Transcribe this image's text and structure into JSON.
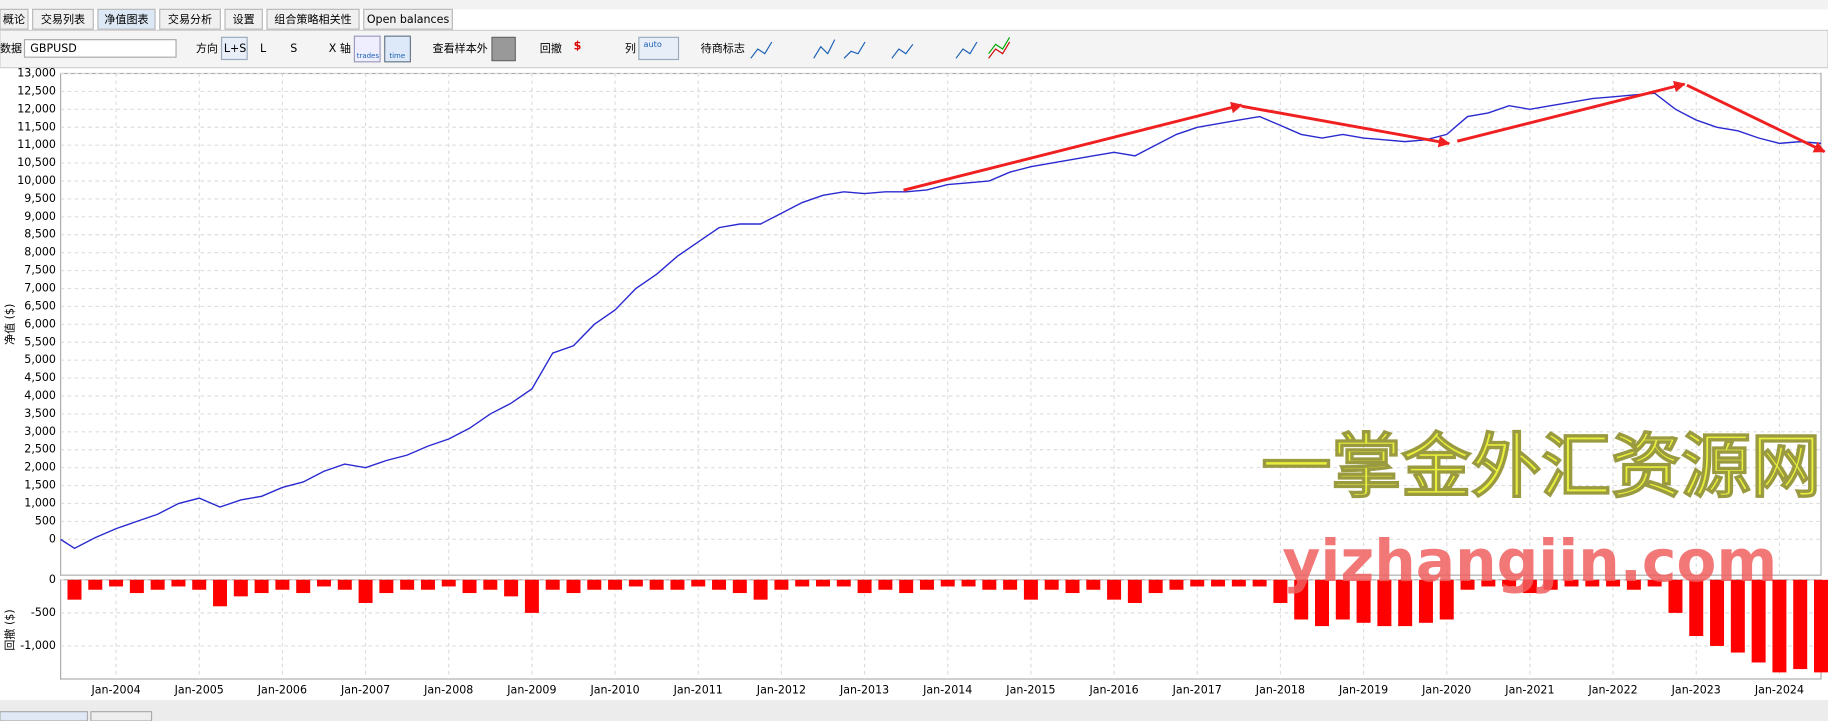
{
  "tabs": [
    "概论",
    "交易列表",
    "净值图表",
    "交易分析",
    "设置",
    "组合策略相关性",
    "Open balances"
  ],
  "toolbar": {
    "data_label": "数据",
    "symbol": "GBPUSD",
    "direction_label": "方向",
    "directions": [
      "L+S",
      "L",
      "S"
    ],
    "x_axis_label": "X 轴",
    "x_axis_modes": [
      "trades",
      "time"
    ],
    "out_of_sample": "查看样本外",
    "drawdown_label": "回撤",
    "drawdown_unit": "$",
    "columns_label": "列",
    "columns_mode": "auto",
    "trade_marks_label": "待商标志"
  },
  "watermark": {
    "title": "一掌金外汇资源网",
    "url": "yizhangjin.com"
  },
  "chart_data": [
    {
      "type": "line",
      "y_label": "净值 ($)",
      "color": "#2a2ad0",
      "grid": true,
      "x": [
        "May-2003",
        "Jul-2003",
        "Oct-2003",
        "Jan-2004",
        "Apr-2004",
        "Jul-2004",
        "Oct-2004",
        "Jan-2005",
        "Apr-2005",
        "Jul-2005",
        "Oct-2005",
        "Jan-2006",
        "Apr-2006",
        "Jul-2006",
        "Oct-2006",
        "Jan-2007",
        "Apr-2007",
        "Jul-2007",
        "Oct-2007",
        "Jan-2008",
        "Apr-2008",
        "Jul-2008",
        "Oct-2008",
        "Jan-2009",
        "Apr-2009",
        "Jul-2009",
        "Oct-2009",
        "Jan-2010",
        "Apr-2010",
        "Jul-2010",
        "Oct-2010",
        "Jan-2011",
        "Apr-2011",
        "Jul-2011",
        "Oct-2011",
        "Jan-2012",
        "Apr-2012",
        "Jul-2012",
        "Oct-2012",
        "Jan-2013",
        "Apr-2013",
        "Jul-2013",
        "Oct-2013",
        "Jan-2014",
        "Apr-2014",
        "Jul-2014",
        "Oct-2014",
        "Jan-2015",
        "Apr-2015",
        "Jul-2015",
        "Oct-2015",
        "Jan-2016",
        "Apr-2016",
        "Jul-2016",
        "Oct-2016",
        "Jan-2017",
        "Apr-2017",
        "Jul-2017",
        "Oct-2017",
        "Jan-2018",
        "Apr-2018",
        "Jul-2018",
        "Oct-2018",
        "Jan-2019",
        "Apr-2019",
        "Jul-2019",
        "Oct-2019",
        "Jan-2020",
        "Apr-2020",
        "Jul-2020",
        "Oct-2020",
        "Jan-2021",
        "Apr-2021",
        "Jul-2021",
        "Oct-2021",
        "Jan-2022",
        "Apr-2022",
        "Jul-2022",
        "Oct-2022",
        "Jan-2023",
        "Apr-2023",
        "Jul-2023",
        "Oct-2023",
        "Jan-2024",
        "Apr-2024",
        "Jul-2024"
      ],
      "values": [
        0,
        -250,
        50,
        300,
        500,
        700,
        1000,
        1150,
        900,
        1100,
        1200,
        1450,
        1600,
        1900,
        2100,
        2000,
        2200,
        2350,
        2600,
        2800,
        3100,
        3500,
        3800,
        4200,
        5200,
        5400,
        6000,
        6400,
        7000,
        7400,
        7900,
        8300,
        8700,
        8800,
        8800,
        9100,
        9400,
        9600,
        9700,
        9650,
        9700,
        9700,
        9750,
        9900,
        9950,
        10000,
        10250,
        10400,
        10500,
        10600,
        10700,
        10800,
        10700,
        11000,
        11300,
        11500,
        11600,
        11700,
        11800,
        11550,
        11300,
        11200,
        11300,
        11200,
        11150,
        11100,
        11150,
        11300,
        11800,
        11900,
        12100,
        12000,
        12100,
        12200,
        12300,
        12350,
        12400,
        12450,
        12000,
        11700,
        11500,
        11400,
        11200,
        11050,
        11100,
        11050
      ],
      "xlim": [
        "May-2003",
        "Jul-2024"
      ],
      "xticks": [
        "Jan-2004",
        "Jan-2005",
        "Jan-2006",
        "Jan-2007",
        "Jan-2008",
        "Jan-2009",
        "Jan-2010",
        "Jan-2011",
        "Jan-2012",
        "Jan-2013",
        "Jan-2014",
        "Jan-2015",
        "Jan-2016",
        "Jan-2017",
        "Jan-2018",
        "Jan-2019",
        "Jan-2020",
        "Jan-2021",
        "Jan-2022",
        "Jan-2023",
        "Jan-2024"
      ],
      "ylim": [
        -1000,
        13000
      ],
      "yticks": [
        0,
        500,
        {
          "value": 1000,
          "label": "1,000"
        },
        {
          "value": 1500,
          "label": "1,500"
        },
        {
          "value": 2000,
          "label": "2,000"
        },
        {
          "value": 2500,
          "label": "2,500"
        },
        {
          "value": 3000,
          "label": "3,000"
        },
        {
          "value": 3500,
          "label": "3,500"
        },
        {
          "value": 4000,
          "label": "4,000"
        },
        {
          "value": 4500,
          "label": "4,500"
        },
        {
          "value": 5000,
          "label": "5,000"
        },
        {
          "value": 5500,
          "label": "5,500"
        },
        {
          "value": 6000,
          "label": "6,000"
        },
        {
          "value": 6500,
          "label": "6,500"
        },
        {
          "value": 7000,
          "label": "7,000"
        },
        {
          "value": 7500,
          "label": "7,500"
        },
        {
          "value": 8000,
          "label": "8,000"
        },
        {
          "value": 8500,
          "label": "8,500"
        },
        {
          "value": 9000,
          "label": "9,000"
        },
        {
          "value": 9500,
          "label": "9,500"
        },
        {
          "value": 10000,
          "label": "10,000"
        },
        {
          "value": 10500,
          "label": "10,500"
        },
        {
          "value": 11000,
          "label": "11,000"
        },
        {
          "value": 11500,
          "label": "11,500"
        },
        {
          "value": 12000,
          "label": "12,000"
        },
        {
          "value": 12500,
          "label": "12,500"
        },
        {
          "value": 13000,
          "label": "13,000"
        }
      ]
    },
    {
      "type": "bar",
      "y_label": "回撤 ($)",
      "color": "#ff0000",
      "grid": true,
      "x": [
        "May-2003",
        "Jul-2003",
        "Oct-2003",
        "Jan-2004",
        "Apr-2004",
        "Jul-2004",
        "Oct-2004",
        "Jan-2005",
        "Apr-2005",
        "Jul-2005",
        "Oct-2005",
        "Jan-2006",
        "Apr-2006",
        "Jul-2006",
        "Oct-2006",
        "Jan-2007",
        "Apr-2007",
        "Jul-2007",
        "Oct-2007",
        "Jan-2008",
        "Apr-2008",
        "Jul-2008",
        "Oct-2008",
        "Jan-2009",
        "Apr-2009",
        "Jul-2009",
        "Oct-2009",
        "Jan-2010",
        "Apr-2010",
        "Jul-2010",
        "Oct-2010",
        "Jan-2011",
        "Apr-2011",
        "Jul-2011",
        "Oct-2011",
        "Jan-2012",
        "Apr-2012",
        "Jul-2012",
        "Oct-2012",
        "Jan-2013",
        "Apr-2013",
        "Jul-2013",
        "Oct-2013",
        "Jan-2014",
        "Apr-2014",
        "Jul-2014",
        "Oct-2014",
        "Jan-2015",
        "Apr-2015",
        "Jul-2015",
        "Oct-2015",
        "Jan-2016",
        "Apr-2016",
        "Jul-2016",
        "Oct-2016",
        "Jan-2017",
        "Apr-2017",
        "Jul-2017",
        "Oct-2017",
        "Jan-2018",
        "Apr-2018",
        "Jul-2018",
        "Oct-2018",
        "Jan-2019",
        "Apr-2019",
        "Jul-2019",
        "Oct-2019",
        "Jan-2020",
        "Apr-2020",
        "Jul-2020",
        "Oct-2020",
        "Jan-2021",
        "Apr-2021",
        "Jul-2021",
        "Oct-2021",
        "Jan-2022",
        "Apr-2022",
        "Jul-2022",
        "Oct-2022",
        "Jan-2023",
        "Apr-2023",
        "Jul-2023",
        "Oct-2023",
        "Jan-2024",
        "Apr-2024",
        "Jul-2024"
      ],
      "values": [
        0,
        -300,
        -150,
        -100,
        -200,
        -150,
        -100,
        -150,
        -400,
        -250,
        -200,
        -150,
        -200,
        -100,
        -150,
        -350,
        -200,
        -150,
        -150,
        -100,
        -200,
        -150,
        -250,
        -500,
        -150,
        -200,
        -150,
        -150,
        -100,
        -150,
        -150,
        -100,
        -150,
        -200,
        -300,
        -150,
        -100,
        -100,
        -100,
        -200,
        -150,
        -200,
        -150,
        -100,
        -100,
        -150,
        -150,
        -300,
        -150,
        -200,
        -150,
        -300,
        -350,
        -200,
        -150,
        -100,
        -100,
        -100,
        -100,
        -350,
        -600,
        -700,
        -600,
        -650,
        -700,
        -700,
        -650,
        -600,
        -150,
        -100,
        -100,
        -200,
        -150,
        -100,
        -100,
        -100,
        -150,
        -100,
        -500,
        -850,
        -1000,
        -1100,
        -1250,
        -1400,
        -1350,
        -1400
      ],
      "xlim": [
        "May-2003",
        "Jul-2024"
      ],
      "xticks": [
        "Jan-2004",
        "Jan-2005",
        "Jan-2006",
        "Jan-2007",
        "Jan-2008",
        "Jan-2009",
        "Jan-2010",
        "Jan-2011",
        "Jan-2012",
        "Jan-2013",
        "Jan-2014",
        "Jan-2015",
        "Jan-2016",
        "Jan-2017",
        "Jan-2018",
        "Jan-2019",
        "Jan-2020",
        "Jan-2021",
        "Jan-2022",
        "Jan-2023",
        "Jan-2024"
      ],
      "ylim": [
        -1500,
        0
      ],
      "yticks": [
        0,
        -500,
        {
          "value": -1000,
          "label": "-1,000"
        }
      ]
    }
  ]
}
